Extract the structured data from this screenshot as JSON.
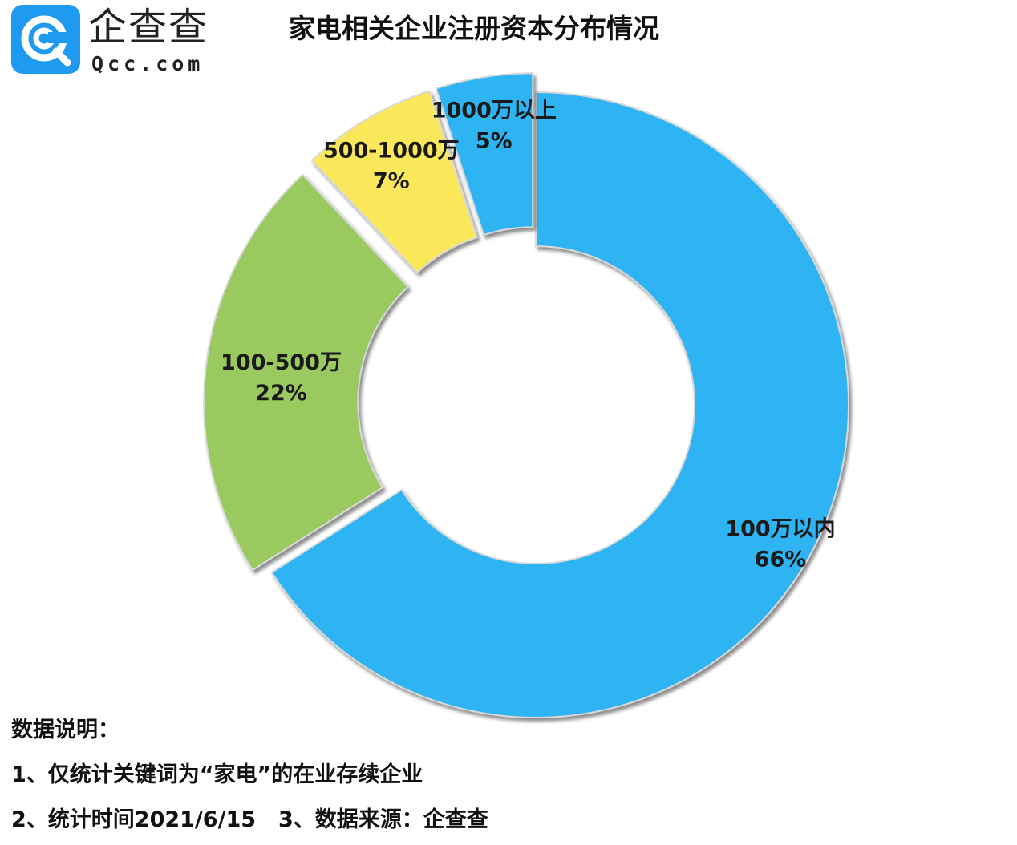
{
  "logo": {
    "name": "企查查",
    "domain": "Qcc.com",
    "color": "#1E9BF0"
  },
  "chart_data": {
    "type": "pie",
    "title": "家电相关企业注册资本分布情况",
    "slices": [
      {
        "label": "100万以内",
        "value": 66,
        "percent_label": "66%",
        "color": "#2EB4F2"
      },
      {
        "label": "100-500万",
        "value": 22,
        "percent_label": "22%",
        "color": "#9ACA5E"
      },
      {
        "label": "500-1000万",
        "value": 7,
        "percent_label": "7%",
        "color": "#FBE75A"
      },
      {
        "label": "1000万以上",
        "value": 5,
        "percent_label": "5%",
        "color": "#2EB4F2"
      }
    ],
    "unit": "%"
  },
  "notes": {
    "heading": "数据说明：",
    "line1": "1、仅统计关键词为“家电”的在业存续企业",
    "line2a": "2、统计时间2021/6/15",
    "line2b": "3、数据来源：企查查"
  }
}
